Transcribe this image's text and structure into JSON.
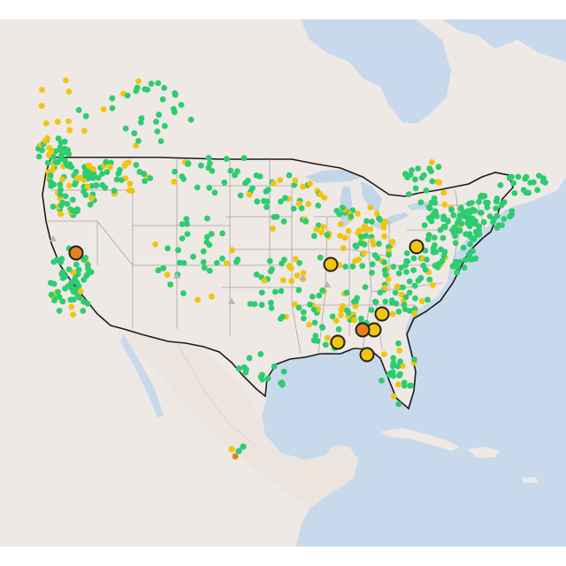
{
  "map": {
    "colors": {
      "water": "#c7d9ea",
      "land": "#efe9e5",
      "land_dark": "#e6dfda",
      "lake": "#c2d6e8",
      "state_border": "#a7a3a5",
      "country_border": "#1a1a1a",
      "dot_green": "#2ecc71",
      "dot_yellow": "#f1c40f",
      "dot_orange": "#e67e22",
      "dot_gray": "#b0b6bd",
      "marker_outline": "#1f1f1f",
      "frame": "#ffffff"
    },
    "legend": null
  },
  "markers": {
    "large": [
      {
        "status": "severe",
        "color": "orange"
      },
      {
        "status": "moderate",
        "color": "yellow"
      },
      {
        "status": "moderate",
        "color": "yellow"
      },
      {
        "status": "moderate",
        "color": "yellow"
      },
      {
        "status": "moderate",
        "color": "yellow"
      },
      {
        "status": "severe",
        "color": "orange"
      },
      {
        "status": "moderate",
        "color": "yellow"
      },
      {
        "status": "moderate",
        "color": "yellow"
      }
    ]
  }
}
